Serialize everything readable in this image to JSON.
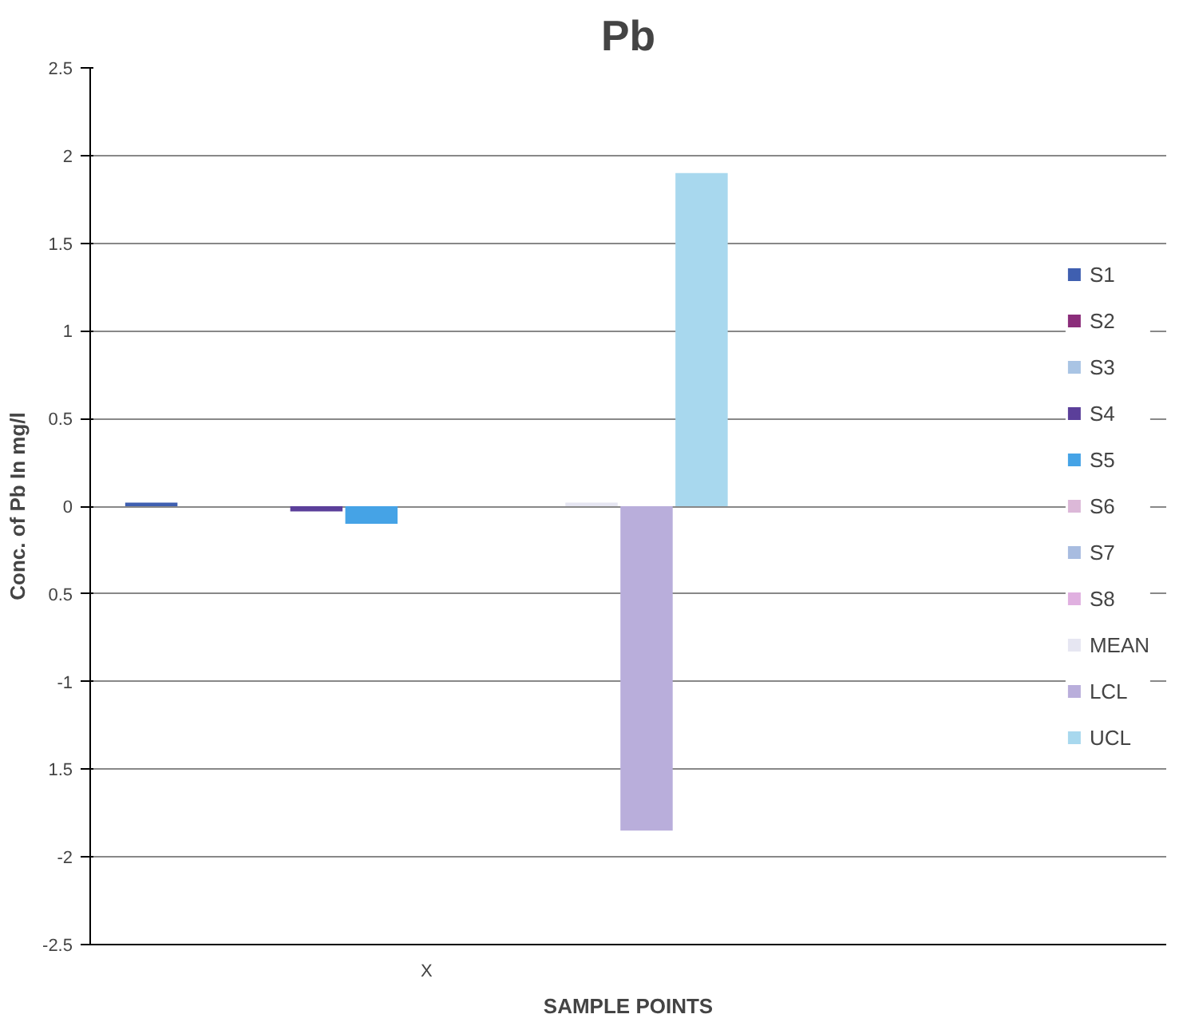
{
  "chart_data": {
    "type": "bar",
    "title": "Pb",
    "xlabel": "SAMPLE POINTS",
    "ylabel": "Conc. of Pb In mg/l",
    "categories": [
      "X"
    ],
    "series": [
      {
        "name": "S1",
        "color": "#3f5fb0",
        "values": [
          0.02
        ]
      },
      {
        "name": "S2",
        "color": "#8b2d7a",
        "values": [
          0
        ]
      },
      {
        "name": "S3",
        "color": "#a9c4e4",
        "values": [
          0
        ]
      },
      {
        "name": "S4",
        "color": "#5b3f9a",
        "values": [
          -0.03
        ]
      },
      {
        "name": "S5",
        "color": "#45a3e6",
        "values": [
          -0.1
        ]
      },
      {
        "name": "S6",
        "color": "#dcb8d8",
        "values": [
          0
        ]
      },
      {
        "name": "S7",
        "color": "#a8bce0",
        "values": [
          0
        ]
      },
      {
        "name": "S8",
        "color": "#e0b0e0",
        "values": [
          0
        ]
      },
      {
        "name": "MEAN",
        "color": "#e6e6f2",
        "values": [
          0.02
        ]
      },
      {
        "name": "LCL",
        "color": "#b9aedb",
        "values": [
          -1.85
        ]
      },
      {
        "name": "UCL",
        "color": "#a8d8ee",
        "values": [
          1.9
        ]
      }
    ],
    "ylim": [
      -2.5,
      2.5
    ],
    "yticks": [
      -2.5,
      -2,
      {
        "value": -1.5,
        "label": "1.5"
      },
      -1,
      {
        "value": -0.5,
        "label": "0.5"
      },
      0,
      0.5,
      1,
      1.5,
      2,
      2.5
    ],
    "grid": "y",
    "legend": "right"
  }
}
